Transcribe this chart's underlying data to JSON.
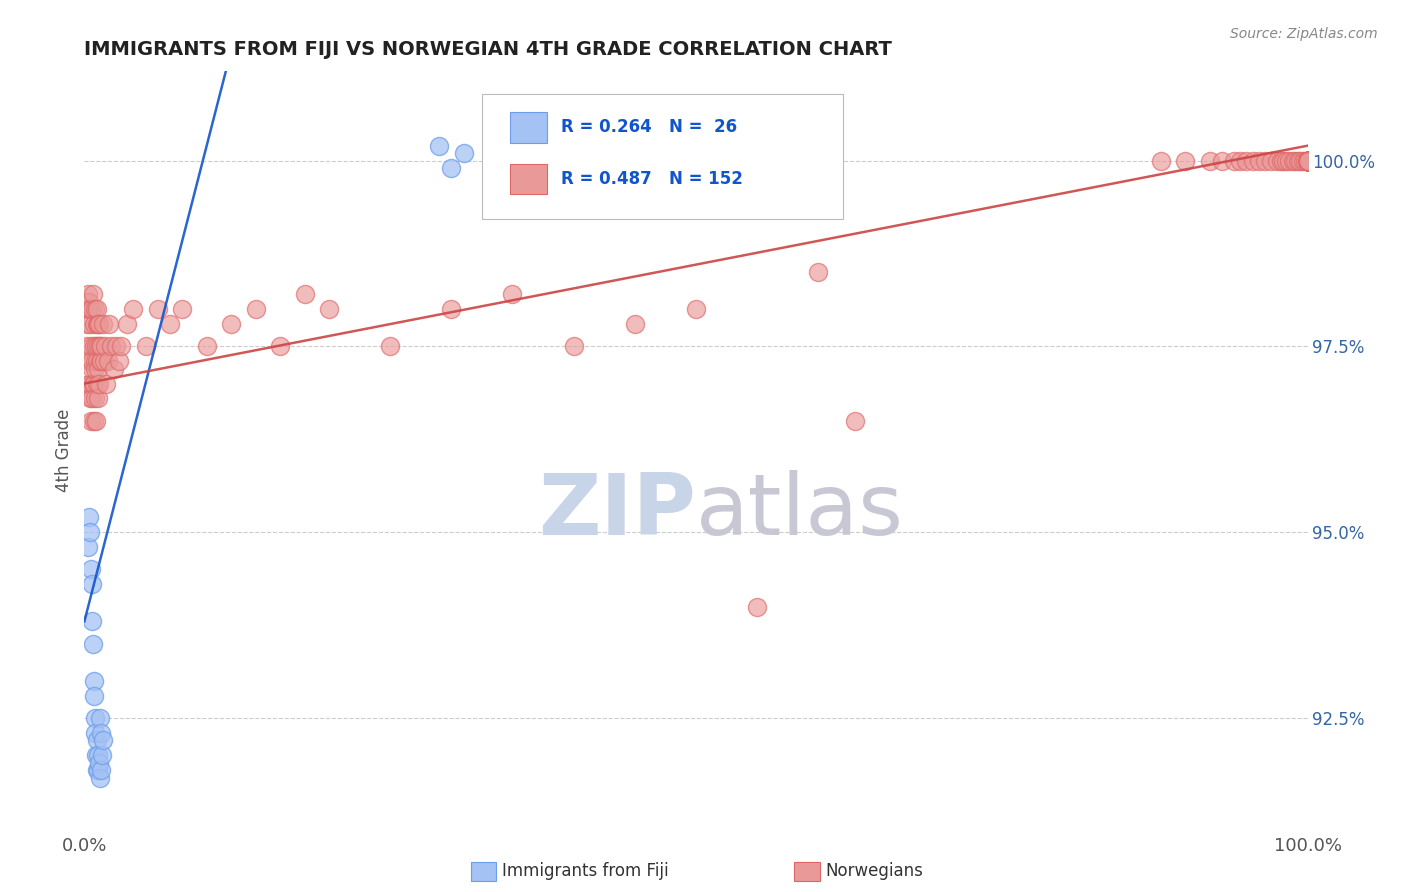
{
  "title": "IMMIGRANTS FROM FIJI VS NORWEGIAN 4TH GRADE CORRELATION CHART",
  "source_text": "Source: ZipAtlas.com",
  "ylabel": "4th Grade",
  "ylabel_right_ticks": [
    92.5,
    95.0,
    97.5,
    100.0
  ],
  "ylabel_right_labels": [
    "92.5%",
    "95.0%",
    "97.5%",
    "100.0%"
  ],
  "x_range": [
    0.0,
    100.0
  ],
  "y_range": [
    91.0,
    101.2
  ],
  "fiji_R": 0.264,
  "fiji_N": 26,
  "norwegian_R": 0.487,
  "norwegian_N": 152,
  "fiji_color": "#a4c2f4",
  "fiji_edge_color": "#6d9eeb",
  "norwegian_color": "#ea9999",
  "norwegian_edge_color": "#e06666",
  "fiji_line_color": "#1155cc",
  "norwegian_line_color": "#cc4444",
  "watermark_zip_color": "#c8d4e8",
  "watermark_atlas_color": "#c8c8d4",
  "legend_text_color": "#1155cc",
  "background_color": "#ffffff",
  "fiji_x": [
    0.3,
    0.4,
    0.5,
    0.55,
    0.6,
    0.65,
    0.7,
    0.75,
    0.8,
    0.85,
    0.9,
    0.95,
    1.0,
    1.05,
    1.1,
    1.15,
    1.2,
    1.25,
    1.3,
    1.35,
    1.4,
    1.45,
    1.5,
    29.0,
    30.0,
    31.0
  ],
  "fiji_y": [
    94.8,
    95.2,
    95.0,
    94.5,
    94.3,
    93.8,
    93.5,
    93.0,
    92.8,
    92.5,
    92.3,
    92.0,
    91.8,
    92.2,
    92.0,
    91.8,
    91.9,
    91.7,
    92.5,
    92.3,
    91.8,
    92.0,
    92.2,
    100.2,
    99.9,
    100.1
  ],
  "nor_x": [
    0.2,
    0.25,
    0.3,
    0.35,
    0.35,
    0.4,
    0.4,
    0.45,
    0.45,
    0.5,
    0.5,
    0.55,
    0.55,
    0.6,
    0.6,
    0.65,
    0.65,
    0.7,
    0.7,
    0.75,
    0.75,
    0.8,
    0.8,
    0.85,
    0.85,
    0.9,
    0.9,
    0.95,
    0.95,
    1.0,
    1.0,
    1.05,
    1.05,
    1.1,
    1.1,
    1.15,
    1.15,
    1.2,
    1.2,
    1.25,
    1.3,
    1.35,
    1.4,
    1.5,
    1.6,
    1.7,
    1.8,
    1.9,
    2.0,
    2.2,
    2.4,
    2.6,
    2.8,
    3.0,
    3.5,
    4.0,
    5.0,
    6.0,
    7.0,
    8.0,
    10.0,
    12.0,
    14.0,
    16.0,
    18.0,
    20.0,
    25.0,
    30.0,
    35.0,
    40.0,
    45.0,
    50.0,
    55.0,
    60.0,
    63.0,
    88.0,
    90.0,
    92.0,
    93.0,
    94.0,
    94.5,
    95.0,
    95.5,
    96.0,
    96.5,
    97.0,
    97.5,
    97.8,
    98.0,
    98.2,
    98.5,
    98.8,
    99.0,
    99.2,
    99.4,
    99.6,
    99.8,
    100.0,
    100.0,
    100.0,
    100.0,
    100.0,
    100.0,
    100.0,
    100.0,
    100.0,
    100.0,
    100.0,
    100.0,
    100.0,
    100.0,
    100.0,
    100.0,
    100.0,
    100.0,
    100.0,
    100.0,
    100.0,
    100.0,
    100.0,
    100.0,
    100.0,
    100.0,
    100.0,
    100.0,
    100.0,
    100.0,
    100.0,
    100.0,
    100.0,
    100.0,
    100.0,
    100.0,
    100.0,
    100.0,
    100.0,
    100.0,
    100.0,
    100.0,
    100.0,
    100.0,
    100.0,
    100.0,
    100.0,
    100.0,
    100.0,
    100.0,
    100.0,
    100.0,
    100.0
  ],
  "nor_y": [
    97.8,
    97.5,
    98.2,
    97.0,
    98.0,
    97.3,
    98.1,
    96.8,
    97.8,
    97.0,
    98.0,
    96.5,
    97.5,
    97.2,
    98.0,
    96.8,
    97.3,
    97.0,
    98.2,
    96.5,
    97.5,
    97.0,
    97.8,
    96.8,
    97.3,
    97.2,
    98.0,
    96.5,
    97.5,
    97.3,
    97.8,
    97.0,
    98.0,
    96.8,
    97.5,
    97.2,
    97.8,
    97.0,
    97.8,
    97.3,
    97.5,
    97.3,
    97.5,
    97.8,
    97.3,
    97.5,
    97.0,
    97.3,
    97.8,
    97.5,
    97.2,
    97.5,
    97.3,
    97.5,
    97.8,
    98.0,
    97.5,
    98.0,
    97.8,
    98.0,
    97.5,
    97.8,
    98.0,
    97.5,
    98.2,
    98.0,
    97.5,
    98.0,
    98.2,
    97.5,
    97.8,
    98.0,
    94.0,
    98.5,
    96.5,
    100.0,
    100.0,
    100.0,
    100.0,
    100.0,
    100.0,
    100.0,
    100.0,
    100.0,
    100.0,
    100.0,
    100.0,
    100.0,
    100.0,
    100.0,
    100.0,
    100.0,
    100.0,
    100.0,
    100.0,
    100.0,
    100.0,
    100.0,
    100.0,
    100.0,
    100.0,
    100.0,
    100.0,
    100.0,
    100.0,
    100.0,
    100.0,
    100.0,
    100.0,
    100.0,
    100.0,
    100.0,
    100.0,
    100.0,
    100.0,
    100.0,
    100.0,
    100.0,
    100.0,
    100.0,
    100.0,
    100.0,
    100.0,
    100.0,
    100.0,
    100.0,
    100.0,
    100.0,
    100.0,
    100.0,
    100.0,
    100.0,
    100.0,
    100.0,
    100.0,
    100.0,
    100.0,
    100.0,
    100.0,
    100.0,
    100.0,
    100.0,
    100.0,
    100.0,
    100.0,
    100.0,
    100.0,
    100.0,
    100.0,
    100.0
  ],
  "fiji_line_x": [
    0.0,
    10.0
  ],
  "fiji_line_y": [
    93.8,
    100.2
  ],
  "nor_line_x": [
    0.0,
    100.0
  ],
  "nor_line_y": [
    97.0,
    100.2
  ]
}
